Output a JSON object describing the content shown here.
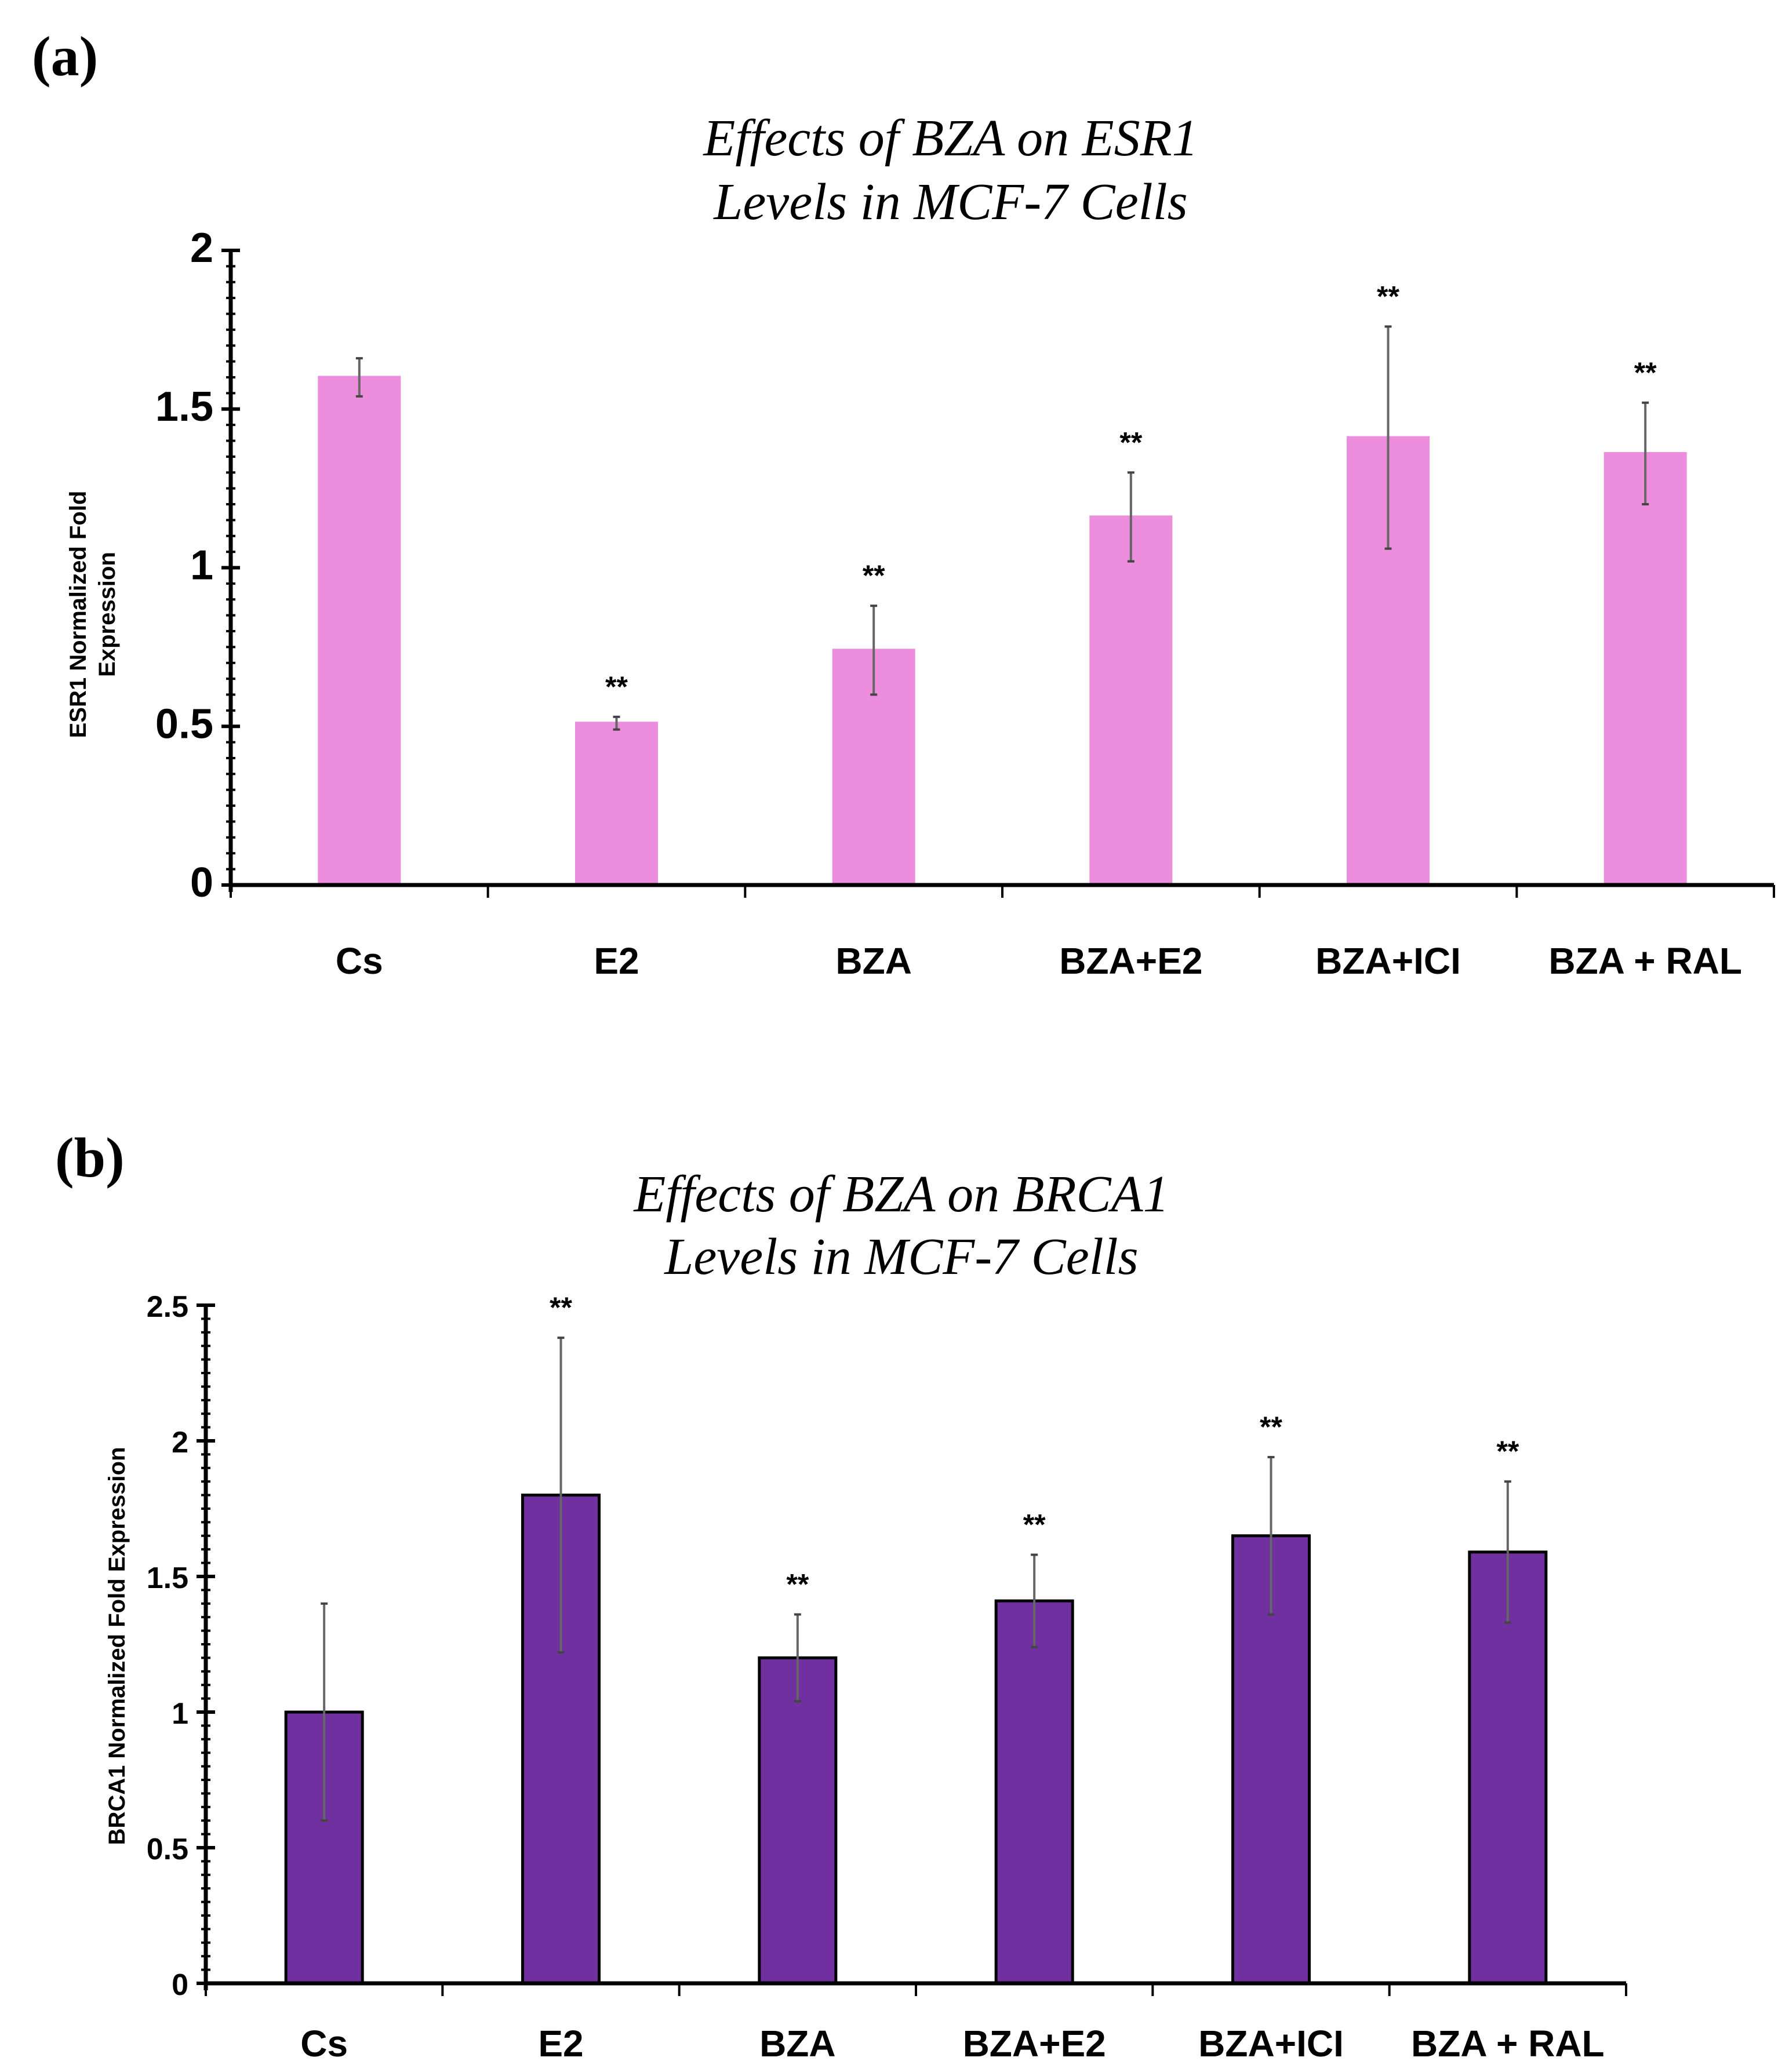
{
  "chart_data": [
    {
      "type": "bar",
      "panel_label": "(a)",
      "title_lines": [
        "Effects of BZA on ESR1",
        "Levels in MCF-7 Cells"
      ],
      "xlabel": "",
      "ylabel_lines": [
        "ESR1 Normalized Fold",
        "Expression"
      ],
      "categories": [
        "Cs",
        "E2",
        "BZA",
        "BZA+E2",
        "BZA+ICI",
        "BZA + RAL"
      ],
      "values": [
        1.6,
        0.51,
        0.74,
        1.16,
        1.41,
        1.36
      ],
      "error": [
        0.06,
        0.02,
        0.14,
        0.14,
        0.35,
        0.16
      ],
      "significance": [
        "",
        "**",
        "**",
        "**",
        "**",
        "**"
      ],
      "ylim": [
        0,
        2
      ],
      "yticks": [
        0,
        0.5,
        1,
        1.5,
        2
      ],
      "ytick_labels": [
        "0",
        "0.5",
        "1",
        "1.5",
        "2"
      ],
      "grid": false,
      "bar_color": "#ec8edd",
      "bar_outline": "#ec8edd"
    },
    {
      "type": "bar",
      "panel_label": "(b)",
      "title_lines": [
        "Effects of BZA on BRCA1",
        "Levels in MCF-7 Cells"
      ],
      "xlabel": "",
      "ylabel_lines": [
        "BRCA1  Normalized Fold Expression"
      ],
      "categories": [
        "Cs",
        "E2",
        "BZA",
        "BZA+E2",
        "BZA+ICI",
        "BZA + RAL"
      ],
      "values": [
        1.0,
        1.8,
        1.2,
        1.41,
        1.65,
        1.59
      ],
      "error": [
        0.4,
        0.58,
        0.16,
        0.17,
        0.29,
        0.26
      ],
      "significance": [
        "",
        "**",
        "**",
        "**",
        "**",
        "**"
      ],
      "ylim": [
        0,
        2.5
      ],
      "yticks": [
        0,
        0.5,
        1,
        1.5,
        2,
        2.5
      ],
      "ytick_labels": [
        "0",
        "0.5",
        "1",
        "1.5",
        "2",
        "2.5"
      ],
      "grid": false,
      "bar_color": "#7030a0",
      "bar_outline": "#000000"
    }
  ]
}
